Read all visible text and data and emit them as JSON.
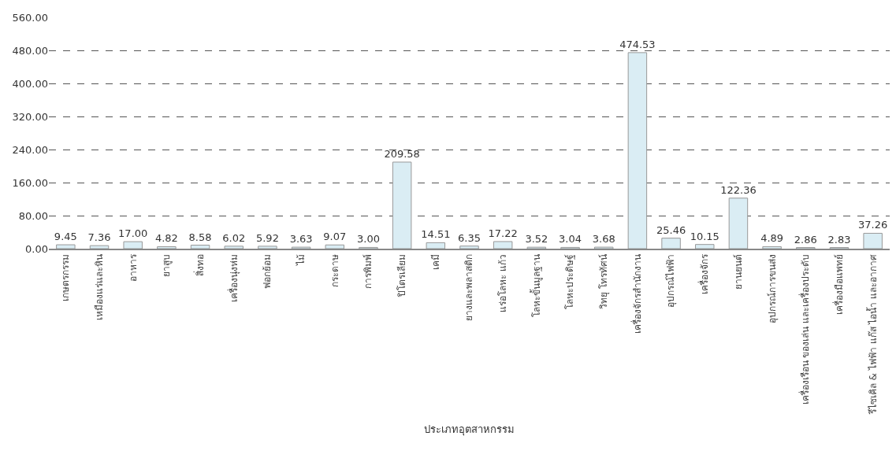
{
  "chart_data": {
    "type": "bar",
    "xlabel": "ประเภทอุตสาหกรรม",
    "categories": [
      "เกษตรกรรม",
      "เหมืองแร่และหิน",
      "อาหาร",
      "ยาสูบ",
      "สิ่งทอ",
      "เครื่องนุ่งห่ม",
      "ฟอกย้อม",
      "ไม้",
      "กระดาษ",
      "การพิมพ์",
      "ปิโตรเลียม",
      "เคมี",
      "ยางและพลาสติก",
      "แร่อโลหะ แก้ว",
      "โลหะขั้นมูลฐาน",
      "โลหะประดิษฐ์",
      "วิทยุ โทรทัศน์",
      "เครื่องจักรสำนักงาน",
      "อุปกรณ์ไฟฟ้า",
      "เครื่องจักร",
      "ยานยนต์",
      "อุปกรณ์การขนส่ง",
      "เครื่องเรือน ของเล่น และเครื่องประดับ",
      "เครื่องมือแพทย์",
      "รีไซเคิล & ไฟฟ้า แก๊ส ไอน้ำ และอากาศ"
    ],
    "values": [
      9.45,
      7.36,
      17.0,
      4.82,
      8.58,
      6.02,
      5.92,
      3.63,
      9.07,
      3.0,
      209.58,
      14.51,
      6.35,
      17.22,
      3.52,
      3.04,
      3.68,
      474.53,
      25.46,
      10.15,
      122.36,
      4.89,
      2.86,
      2.83,
      37.26
    ],
    "value_labels": [
      "9.45",
      "7.36",
      "17.00",
      "4.82",
      "8.58",
      "6.02",
      "5.92",
      "3.63",
      "9.07",
      "3.00",
      "209.58",
      "14.51",
      "6.35",
      "17.22",
      "3.52",
      "3.04",
      "3.68",
      "474.53",
      "25.46",
      "10.15",
      "122.36",
      "4.89",
      "2.86",
      "2.83",
      "37.26"
    ],
    "color": "#daedf4",
    "ylim": [
      0,
      560
    ],
    "yticks": [
      {
        "value": 0,
        "label": "0.00"
      },
      {
        "value": 80,
        "label": "80.00"
      },
      {
        "value": 160,
        "label": "160.00"
      },
      {
        "value": 240,
        "label": "240.00"
      },
      {
        "value": 320,
        "label": "320.00"
      },
      {
        "value": 400,
        "label": "400.00"
      },
      {
        "value": 480,
        "label": "480.00"
      },
      {
        "value": 560,
        "label": "560.00"
      }
    ],
    "grid": "y"
  }
}
